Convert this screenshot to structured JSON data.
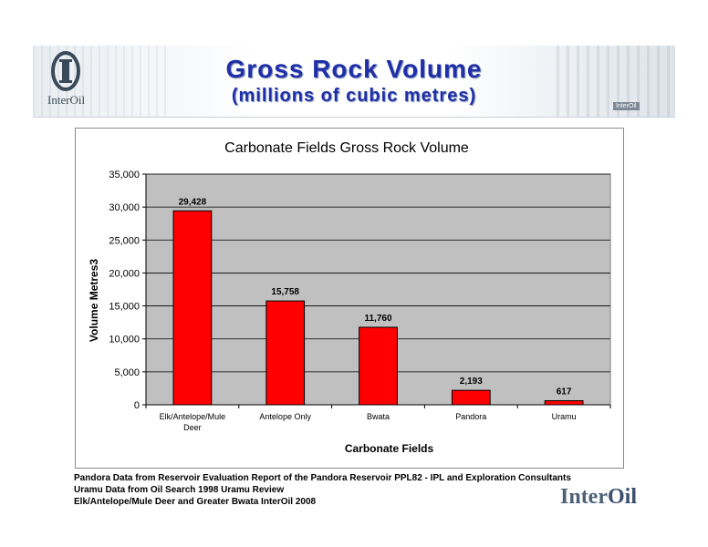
{
  "header": {
    "title": "Gross Rock Volume",
    "subtitle": "(millions of cubic metres)",
    "logo_text": "InterOil",
    "banner_brand": "InterOil"
  },
  "chart_data": {
    "type": "bar",
    "title": "Carbonate Fields Gross Rock Volume",
    "xlabel": "Carbonate Fields",
    "ylabel": "Volume Metres3",
    "categories": [
      "Elk/Antelope/Mule Deer",
      "Antelope Only",
      "Bwata",
      "Pandora",
      "Uramu"
    ],
    "values": [
      29428,
      15758,
      11760,
      2193,
      617
    ],
    "value_labels": [
      "29,428",
      "15,758",
      "11,760",
      "2,193",
      "617"
    ],
    "ylim": [
      0,
      35000
    ],
    "yticks": [
      0,
      5000,
      10000,
      15000,
      20000,
      25000,
      30000,
      35000
    ],
    "ytick_labels": [
      "0",
      "5,000",
      "10,000",
      "15,000",
      "20,000",
      "25,000",
      "30,000",
      "35,000"
    ],
    "grid": true,
    "bar_color": "#ff0000",
    "plot_background": "#c0c0c0"
  },
  "notes": [
    "Pandora Data from Reservoir Evaluation Report of the Pandora Reservoir PPL82 -  IPL and Exploration Consultants",
    "Uramu Data from Oil Search 1998 Uramu Review",
    "Elk/Antelope/Mule Deer and Greater Bwata InterOil 2008"
  ],
  "footer_brand": {
    "part1": "Inter",
    "part2": "Oil"
  },
  "colors": {
    "title": "#1f2fa8",
    "bar": "#ff0000",
    "plot_bg": "#c0c0c0"
  }
}
